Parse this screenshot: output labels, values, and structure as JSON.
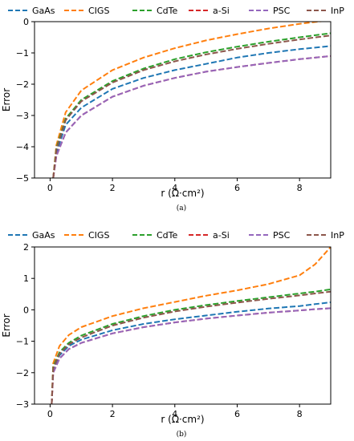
{
  "series_styles": [
    {
      "name": "GaAs",
      "color": "#1f77b4"
    },
    {
      "name": "CIGS",
      "color": "#ff7f0e"
    },
    {
      "name": "CdTe",
      "color": "#2ca02c"
    },
    {
      "name": "a-Si",
      "color": "#d62728"
    },
    {
      "name": "PSC",
      "color": "#9467bd"
    },
    {
      "name": "InP",
      "color": "#8c564b"
    }
  ],
  "chart_data": [
    {
      "type": "line",
      "caption": "(a)",
      "xlabel": "r (Ω·cm²)",
      "ylabel": "Error",
      "xlim": [
        -0.5,
        9
      ],
      "ylim": [
        -5,
        0
      ],
      "xticks": [
        0,
        2,
        4,
        6,
        8
      ],
      "yticks": [
        0,
        -1,
        -2,
        -3,
        -4,
        -5
      ],
      "legend": "top",
      "grid": false,
      "x": [
        0.1,
        0.2,
        0.5,
        1,
        2,
        3,
        4,
        5,
        6,
        7,
        8,
        9
      ],
      "series": [
        {
          "name": "GaAs",
          "values": [
            -5.0,
            -4.2,
            -3.3,
            -2.75,
            -2.15,
            -1.8,
            -1.55,
            -1.35,
            -1.15,
            -1.0,
            -0.88,
            -0.78
          ]
        },
        {
          "name": "CIGS",
          "values": [
            -5.0,
            -3.95,
            -2.9,
            -2.2,
            -1.55,
            -1.15,
            -0.85,
            -0.6,
            -0.4,
            -0.22,
            -0.07,
            0.05
          ]
        },
        {
          "name": "CdTe",
          "values": [
            -5.0,
            -4.05,
            -3.1,
            -2.5,
            -1.9,
            -1.5,
            -1.2,
            -0.98,
            -0.8,
            -0.64,
            -0.5,
            -0.37
          ]
        },
        {
          "name": "a-Si",
          "values": [
            -5.0,
            -4.3,
            -3.55,
            -3.0,
            -2.4,
            -2.05,
            -1.8,
            -1.6,
            -1.45,
            -1.32,
            -1.2,
            -1.1
          ]
        },
        {
          "name": "PSC",
          "values": [
            -5.0,
            -4.3,
            -3.55,
            -3.0,
            -2.4,
            -2.05,
            -1.8,
            -1.6,
            -1.45,
            -1.32,
            -1.2,
            -1.1
          ]
        },
        {
          "name": "InP",
          "values": [
            -5.0,
            -4.1,
            -3.15,
            -2.55,
            -1.95,
            -1.55,
            -1.27,
            -1.05,
            -0.87,
            -0.71,
            -0.57,
            -0.44
          ]
        }
      ]
    },
    {
      "type": "line",
      "caption": "(b)",
      "xlabel": "r (Ω·cm²)",
      "ylabel": "Error",
      "xlim": [
        -0.5,
        9
      ],
      "ylim": [
        -3,
        2
      ],
      "xticks": [
        0,
        2,
        4,
        6,
        8
      ],
      "yticks": [
        2,
        1,
        0,
        -1,
        -2,
        -3
      ],
      "legend": "top",
      "grid": false,
      "x": [
        0.05,
        0.1,
        0.3,
        0.6,
        1,
        2,
        3,
        4,
        5,
        6,
        7,
        8,
        8.5,
        9
      ],
      "series": [
        {
          "name": "GaAs",
          "values": [
            -3.0,
            -1.9,
            -1.45,
            -1.15,
            -0.95,
            -0.65,
            -0.45,
            -0.3,
            -0.18,
            -0.06,
            0.04,
            0.12,
            0.18,
            0.24
          ]
        },
        {
          "name": "CIGS",
          "values": [
            -3.0,
            -1.7,
            -1.15,
            -0.8,
            -0.55,
            -0.2,
            0.05,
            0.25,
            0.45,
            0.62,
            0.82,
            1.1,
            1.45,
            2.0
          ]
        },
        {
          "name": "CdTe",
          "values": [
            -3.0,
            -1.8,
            -1.35,
            -1.05,
            -0.82,
            -0.45,
            -0.2,
            0.0,
            0.15,
            0.28,
            0.4,
            0.52,
            0.58,
            0.65
          ]
        },
        {
          "name": "a-Si",
          "values": [
            -3.0,
            -2.0,
            -1.55,
            -1.25,
            -1.05,
            -0.75,
            -0.55,
            -0.4,
            -0.28,
            -0.18,
            -0.09,
            -0.02,
            0.02,
            0.05
          ]
        },
        {
          "name": "PSC",
          "values": [
            -3.0,
            -2.0,
            -1.55,
            -1.25,
            -1.05,
            -0.75,
            -0.55,
            -0.4,
            -0.28,
            -0.18,
            -0.09,
            -0.02,
            0.02,
            0.05
          ]
        },
        {
          "name": "InP",
          "values": [
            -3.0,
            -1.85,
            -1.4,
            -1.1,
            -0.88,
            -0.5,
            -0.25,
            -0.05,
            0.1,
            0.23,
            0.35,
            0.46,
            0.52,
            0.58
          ]
        }
      ]
    }
  ]
}
